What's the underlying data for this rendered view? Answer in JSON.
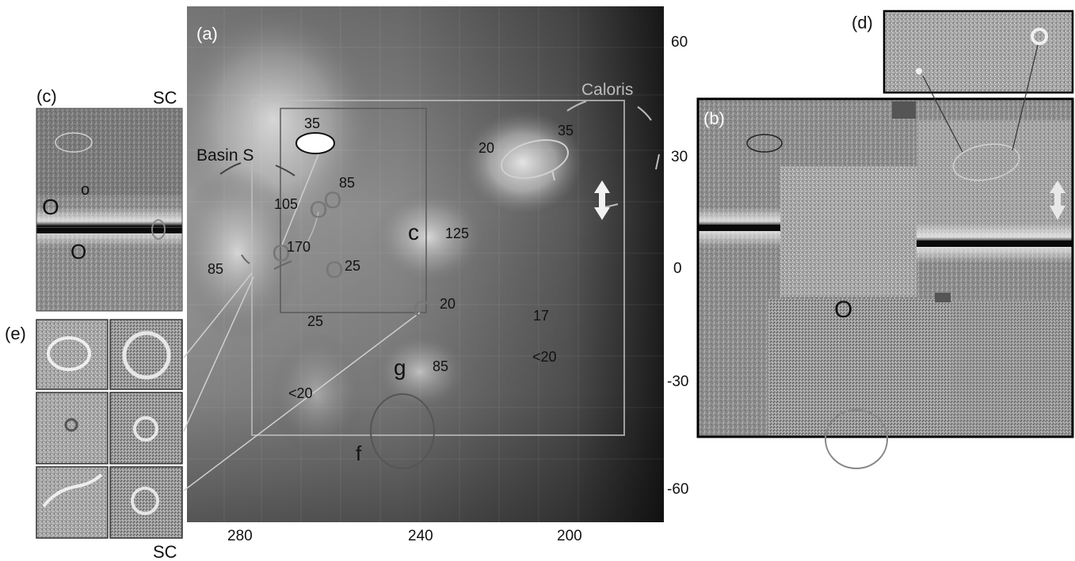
{
  "panels": {
    "a": "(a)",
    "b": "(b)",
    "c": "(c)",
    "d": "(d)",
    "e": "(e)"
  },
  "panel_c": {
    "corner_label": "SC",
    "marks": [
      "o",
      "O",
      "O"
    ]
  },
  "panel_e": {
    "bottom_label": "SC"
  },
  "panel_b": {
    "mark": "O"
  },
  "map": {
    "x_ticks": [
      "280",
      "240",
      "200"
    ],
    "y_ticks": [
      "60",
      "30",
      "0",
      "-30",
      "-60"
    ],
    "region_labels": {
      "caloris": "Caloris",
      "basin_s": "Basin S",
      "c": "c",
      "g": "g",
      "f": "f"
    },
    "value_labels": [
      "35",
      "85",
      "105",
      "170",
      "85",
      "25",
      "25",
      "20",
      "35",
      "125",
      "20",
      "17",
      "<20",
      "85",
      "<20"
    ],
    "crater_marks": [
      "O",
      "O",
      "O",
      "O",
      "O"
    ]
  },
  "colors": {
    "map_dark": "#151515",
    "map_bright": "#e8e8e8",
    "overlay_light": "#bdbdbd",
    "overlay_dark": "#555555"
  }
}
